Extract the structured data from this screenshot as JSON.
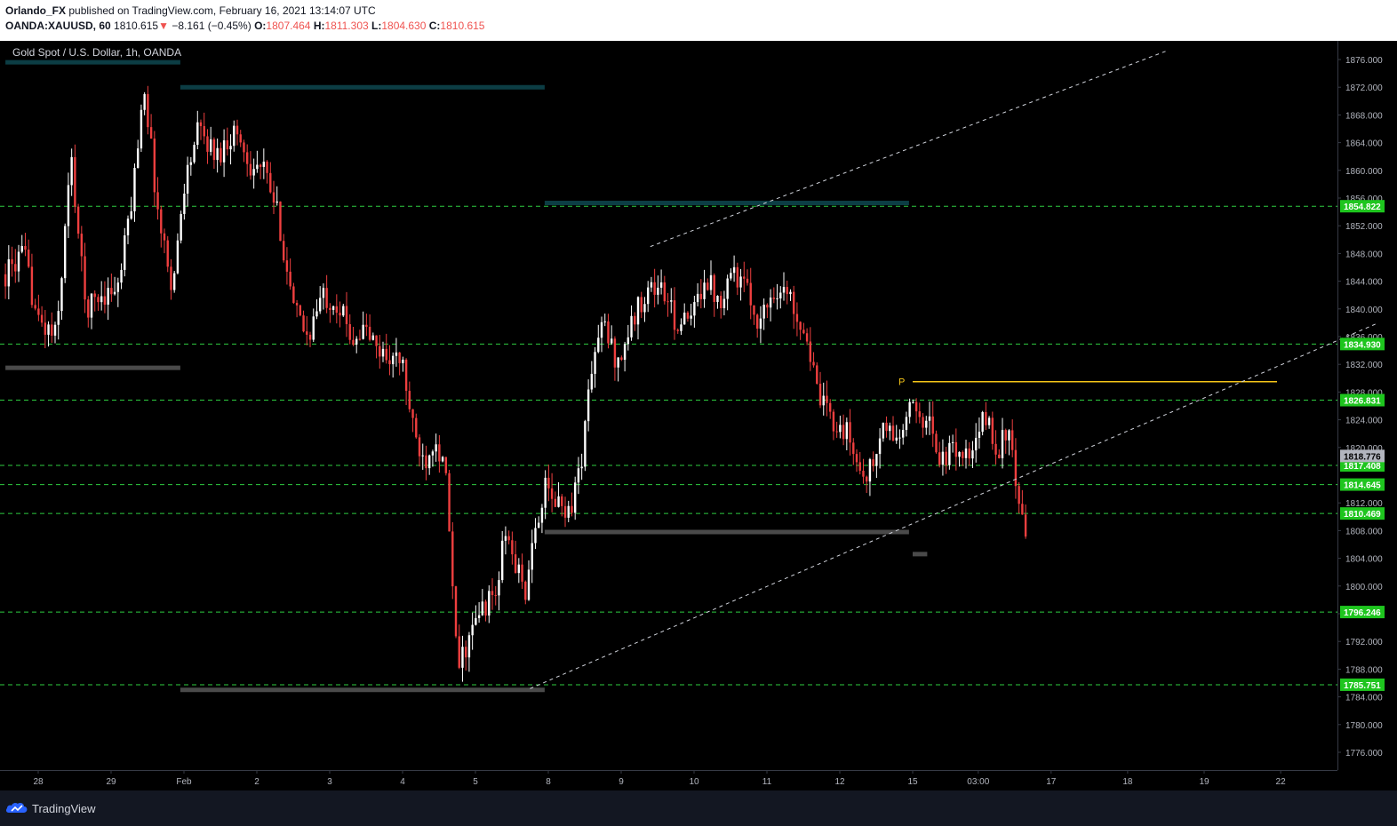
{
  "header": {
    "author": "Orlando_FX",
    "published_text": "published on TradingView.com, February 16, 2021 13:14:07 UTC",
    "symbol": "OANDA:XAUUSD, 60",
    "last": "1810.615",
    "change": "−8.161 (−0.45%)",
    "o_label": "O:",
    "o_value": "1807.464",
    "h_label": "H:",
    "h_value": "1811.303",
    "l_label": "L:",
    "l_value": "1804.630",
    "c_label": "C:",
    "c_value": "1810.615"
  },
  "chart_title": "Gold Spot / U.S. Dollar, 1h, OANDA",
  "footer": {
    "brand": "TradingView"
  },
  "colors": {
    "background": "#000000",
    "up_candle": "#ffffff",
    "down_candle": "#ef3f3f",
    "level_line": "#2ecc40",
    "label_bg": "#1ec51e",
    "current_label_bg": "#b2b5be",
    "trendline": "#d1d4dc",
    "pivot_line": "#f5c518",
    "supply_zone": "#0c3d44",
    "demand_zone": "#4a4a4a"
  },
  "chart_data": {
    "type": "candlestick",
    "title": "Gold Spot / U.S. Dollar, 1h, OANDA",
    "xlabel": "",
    "ylabel": "",
    "ylim": [
      1773.0,
      1878.5
    ],
    "price_ticks": [
      "1876.000",
      "1872.000",
      "1868.000",
      "1864.000",
      "1860.000",
      "1856.000",
      "1852.000",
      "1848.000",
      "1844.000",
      "1840.000",
      "1836.000",
      "1832.000",
      "1828.000",
      "1824.000",
      "1820.000",
      "1812.000",
      "1808.000",
      "1804.000",
      "1800.000",
      "1796.000",
      "1792.000",
      "1788.000",
      "1784.000",
      "1780.000",
      "1776.000"
    ],
    "time_ticks": [
      {
        "label": "28",
        "day": -3
      },
      {
        "label": "29",
        "day": -2
      },
      {
        "label": "Feb",
        "day": -1
      },
      {
        "label": "2",
        "day": 0
      },
      {
        "label": "3",
        "day": 1
      },
      {
        "label": "4",
        "day": 2
      },
      {
        "label": "5",
        "day": 3
      },
      {
        "label": "8",
        "day": 4
      },
      {
        "label": "9",
        "day": 5
      },
      {
        "label": "10",
        "day": 6
      },
      {
        "label": "11",
        "day": 7
      },
      {
        "label": "12",
        "day": 8
      },
      {
        "label": "15",
        "day": 9
      },
      {
        "label": "03:00",
        "day": 9.9
      },
      {
        "label": "17",
        "day": 10.9
      },
      {
        "label": "18",
        "day": 11.95
      },
      {
        "label": "19",
        "day": 13
      },
      {
        "label": "22",
        "day": 14.05
      }
    ],
    "horizontal_levels": [
      {
        "price": 1854.822,
        "label": "1854.822"
      },
      {
        "price": 1834.93,
        "label": "1834.930"
      },
      {
        "price": 1826.831,
        "label": "1826.831"
      },
      {
        "price": 1817.408,
        "label": "1817.408"
      },
      {
        "price": 1814.645,
        "label": "1814.645"
      },
      {
        "price": 1810.469,
        "label": "1810.469"
      },
      {
        "price": 1796.246,
        "label": "1796.246"
      },
      {
        "price": 1785.751,
        "label": "1785.751"
      }
    ],
    "current_price": {
      "price": 1818.776,
      "label": "1818.776"
    },
    "pivot": {
      "label": "P",
      "price": 1829.5,
      "from_day": 9,
      "to_day": 14
    },
    "trendlines": [
      {
        "from": {
          "day": 3.75,
          "price": 1785.2
        },
        "to": {
          "day": 15.35,
          "price": 1837.8
        }
      },
      {
        "from": {
          "day": 5.4,
          "price": 1849.0
        },
        "to": {
          "day": 12.5,
          "price": 1877.3
        }
      }
    ],
    "zones": [
      {
        "kind": "supply",
        "from_day": -3.45,
        "to_day": -1.05,
        "price": 1875.6
      },
      {
        "kind": "supply",
        "from_day": -1.05,
        "to_day": 3.95,
        "price": 1872.0
      },
      {
        "kind": "supply",
        "from_day": 3.95,
        "to_day": 8.95,
        "price": 1855.3
      },
      {
        "kind": "demand",
        "from_day": -3.45,
        "to_day": -1.05,
        "price": 1831.5
      },
      {
        "kind": "demand",
        "from_day": -1.05,
        "to_day": 3.95,
        "price": 1785.0
      },
      {
        "kind": "demand",
        "from_day": 3.95,
        "to_day": 8.95,
        "price": 1807.8
      },
      {
        "kind": "demand",
        "from_day": 9.0,
        "to_day": 9.2,
        "price": 1804.6
      }
    ],
    "anchors": [
      {
        "day": -3.45,
        "price": 1845
      },
      {
        "day": -3.2,
        "price": 1848
      },
      {
        "day": -3.0,
        "price": 1838
      },
      {
        "day": -2.75,
        "price": 1836
      },
      {
        "day": -2.55,
        "price": 1862
      },
      {
        "day": -2.35,
        "price": 1840
      },
      {
        "day": -2.15,
        "price": 1842
      },
      {
        "day": -1.9,
        "price": 1843
      },
      {
        "day": -1.7,
        "price": 1857
      },
      {
        "day": -1.55,
        "price": 1873
      },
      {
        "day": -1.35,
        "price": 1853
      },
      {
        "day": -1.15,
        "price": 1843
      },
      {
        "day": -1.0,
        "price": 1858
      },
      {
        "day": -0.8,
        "price": 1866
      },
      {
        "day": -0.55,
        "price": 1862
      },
      {
        "day": -0.3,
        "price": 1866
      },
      {
        "day": -0.1,
        "price": 1861
      },
      {
        "day": 0.1,
        "price": 1860
      },
      {
        "day": 0.3,
        "price": 1853
      },
      {
        "day": 0.5,
        "price": 1840
      },
      {
        "day": 0.7,
        "price": 1836
      },
      {
        "day": 0.9,
        "price": 1842
      },
      {
        "day": 1.1,
        "price": 1841
      },
      {
        "day": 1.3,
        "price": 1836
      },
      {
        "day": 1.5,
        "price": 1837
      },
      {
        "day": 1.65,
        "price": 1834
      },
      {
        "day": 1.85,
        "price": 1833
      },
      {
        "day": 2.0,
        "price": 1832
      },
      {
        "day": 2.15,
        "price": 1822
      },
      {
        "day": 2.3,
        "price": 1818
      },
      {
        "day": 2.45,
        "price": 1822
      },
      {
        "day": 2.6,
        "price": 1815
      },
      {
        "day": 2.75,
        "price": 1788
      },
      {
        "day": 2.9,
        "price": 1792
      },
      {
        "day": 3.1,
        "price": 1797
      },
      {
        "day": 3.3,
        "price": 1799
      },
      {
        "day": 3.4,
        "price": 1808
      },
      {
        "day": 3.55,
        "price": 1803
      },
      {
        "day": 3.7,
        "price": 1799
      },
      {
        "day": 3.85,
        "price": 1810
      },
      {
        "day": 3.95,
        "price": 1814
      },
      {
        "day": 4.1,
        "price": 1812
      },
      {
        "day": 4.3,
        "price": 1811
      },
      {
        "day": 4.45,
        "price": 1818
      },
      {
        "day": 4.6,
        "price": 1832
      },
      {
        "day": 4.75,
        "price": 1838
      },
      {
        "day": 4.95,
        "price": 1832
      },
      {
        "day": 5.15,
        "price": 1838
      },
      {
        "day": 5.35,
        "price": 1843
      },
      {
        "day": 5.55,
        "price": 1843
      },
      {
        "day": 5.75,
        "price": 1838
      },
      {
        "day": 5.95,
        "price": 1838
      },
      {
        "day": 6.15,
        "price": 1845
      },
      {
        "day": 6.35,
        "price": 1841
      },
      {
        "day": 6.5,
        "price": 1846
      },
      {
        "day": 6.7,
        "price": 1843
      },
      {
        "day": 6.9,
        "price": 1838
      },
      {
        "day": 7.1,
        "price": 1843
      },
      {
        "day": 7.3,
        "price": 1842
      },
      {
        "day": 7.55,
        "price": 1836
      },
      {
        "day": 7.7,
        "price": 1827
      },
      {
        "day": 7.9,
        "price": 1824
      },
      {
        "day": 8.1,
        "price": 1822
      },
      {
        "day": 8.3,
        "price": 1816
      },
      {
        "day": 8.45,
        "price": 1817
      },
      {
        "day": 8.6,
        "price": 1823
      },
      {
        "day": 8.8,
        "price": 1821
      },
      {
        "day": 9.0,
        "price": 1826
      },
      {
        "day": 9.2,
        "price": 1824
      },
      {
        "day": 9.4,
        "price": 1818
      },
      {
        "day": 9.6,
        "price": 1820
      },
      {
        "day": 9.8,
        "price": 1818
      },
      {
        "day": 10.0,
        "price": 1825
      },
      {
        "day": 10.15,
        "price": 1819
      },
      {
        "day": 10.3,
        "price": 1823
      },
      {
        "day": 10.45,
        "price": 1812
      },
      {
        "day": 10.55,
        "price": 1806
      }
    ],
    "notes_x_unit": "trading-day offset from 2 Feb 2021 (0 = 2 Feb, 9 = 15 Feb)"
  }
}
